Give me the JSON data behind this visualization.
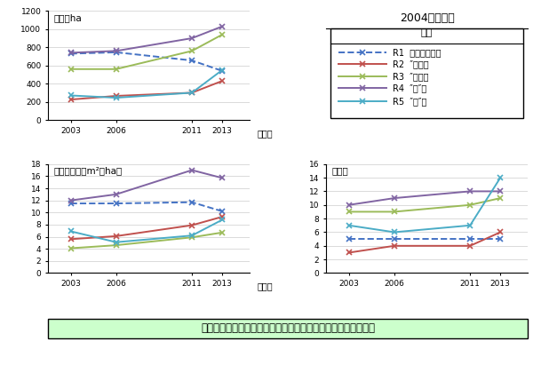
{
  "years": [
    2003,
    2006,
    2011,
    2013
  ],
  "honsu": {
    "R1": [
      730,
      745,
      655,
      540
    ],
    "R2": [
      225,
      265,
      300,
      430
    ],
    "R3": [
      560,
      560,
      760,
      940
    ],
    "R4": [
      740,
      760,
      900,
      1030
    ],
    "R5": [
      270,
      245,
      300,
      550
    ]
  },
  "kyokou": {
    "R1": [
      11.5,
      11.5,
      11.7,
      10.2
    ],
    "R2": [
      5.6,
      6.1,
      7.9,
      9.3
    ],
    "R3": [
      4.1,
      4.6,
      5.9,
      6.7
    ],
    "R4": [
      12.0,
      13.0,
      17.0,
      15.7
    ],
    "R5": [
      6.9,
      5.1,
      6.2,
      8.8
    ]
  },
  "shu": {
    "R1": [
      5,
      5,
      5,
      5
    ],
    "R2": [
      3,
      4,
      4,
      6
    ],
    "R3": [
      9,
      9,
      10,
      11
    ],
    "R4": [
      10,
      11,
      12,
      12
    ],
    "R5": [
      7,
      6,
      7,
      14
    ]
  },
  "colors": {
    "R1": "#4472c4",
    "R2": "#c0504d",
    "R3": "#9bbb59",
    "R4": "#8064a2",
    "R5": "#4bacc6"
  },
  "chart_title": "2004年　間伐",
  "legend_title": "凡例",
  "legend_rows": [
    "R1  伐採率「低」",
    "R2  ″「中」",
    "R3  ″「高」",
    "R4  ″「″」",
    "R5  ″「″」"
  ],
  "legend_linestyles": [
    "--",
    "-",
    "-",
    "-",
    "-"
  ],
  "legend_keys": [
    "R1",
    "R2",
    "R3",
    "R4",
    "R5"
  ],
  "honsu_title": "本数／ha",
  "honsu_ylim": [
    0,
    1200
  ],
  "honsu_yticks": [
    0,
    200,
    400,
    600,
    800,
    1000,
    1200
  ],
  "kyokou_title": "胸高断面積（m²／ha）",
  "kyokou_ylim": [
    0,
    18
  ],
  "kyokou_yticks": [
    0,
    2,
    4,
    6,
    8,
    10,
    12,
    14,
    16,
    18
  ],
  "shu_title": "種　数",
  "shu_ylim": [
    0,
    16
  ],
  "shu_yticks": [
    0,
    2,
    4,
    6,
    8,
    10,
    12,
    14,
    16
  ],
  "nen_label": "（年）",
  "bottom_text": "伐採率の低い林分では本数・胸高断面積が減少（種数は不変）",
  "bottom_bg": "#ccffcc"
}
